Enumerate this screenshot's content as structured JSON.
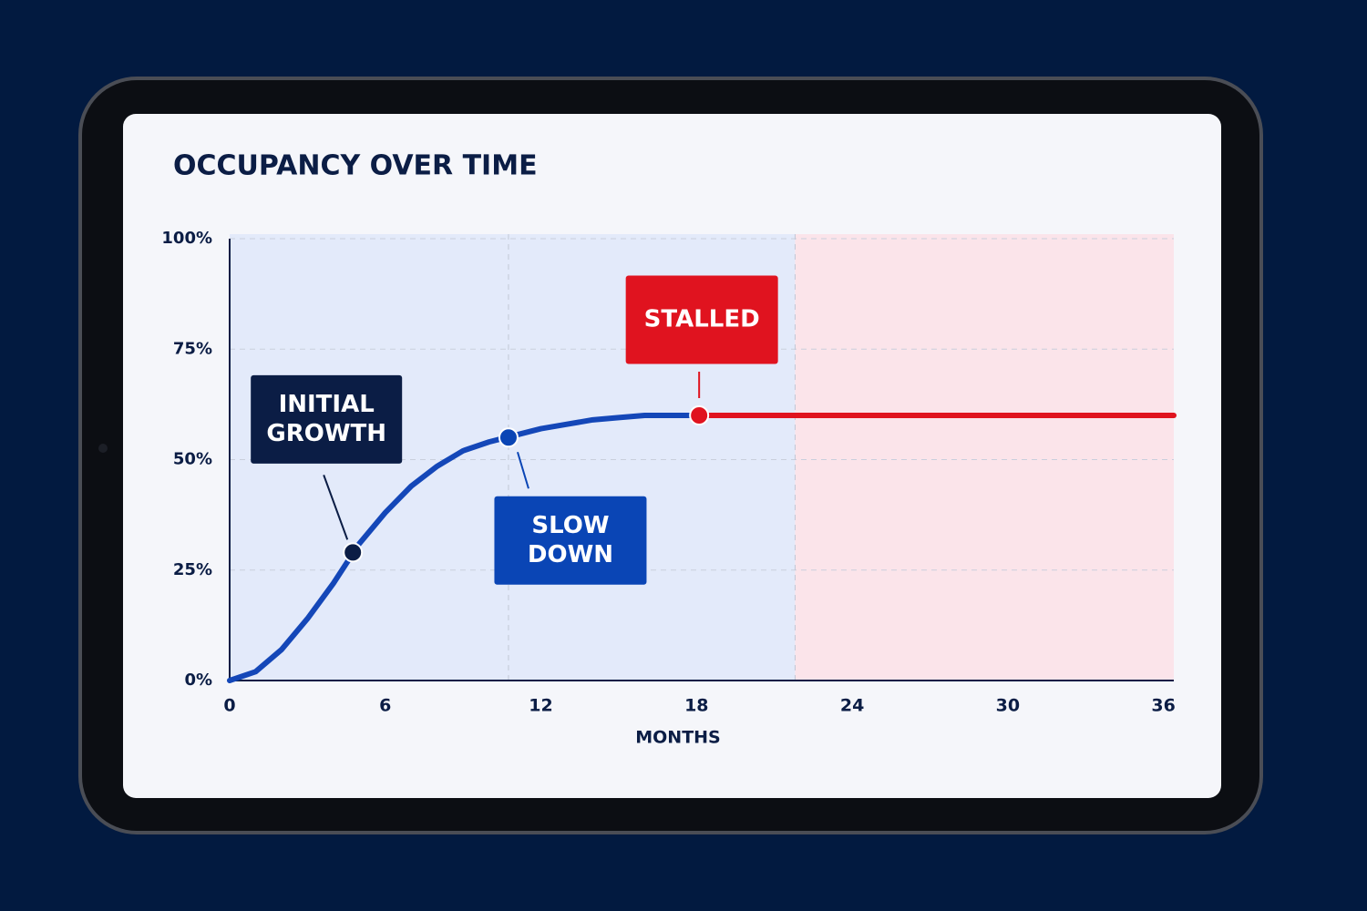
{
  "chart_data": {
    "type": "line",
    "title": "OCCUPANCY OVER TIME",
    "x_label": "MONTHS",
    "xlim": [
      0,
      36.4
    ],
    "xticks": [
      0,
      6,
      12,
      18,
      24,
      30,
      36
    ],
    "ylim": [
      0,
      100
    ],
    "yticks": [
      {
        "value": 0,
        "label": "0%"
      },
      {
        "value": 25,
        "label": "25%"
      },
      {
        "value": 50,
        "label": "50%"
      },
      {
        "value": 75,
        "label": "75%"
      },
      {
        "value": 100,
        "label": "100%"
      }
    ],
    "grid": true,
    "regions": [
      {
        "from": 0,
        "to": 21.8,
        "color": "#e3eafa"
      },
      {
        "from": 21.8,
        "to": 36.4,
        "color": "#fbe4ea"
      }
    ],
    "vlines": [
      10.75,
      21.8
    ],
    "series": [
      {
        "color": "#1447b8",
        "x": [
          0,
          1,
          2,
          3,
          4,
          5,
          6,
          7,
          8,
          9,
          10,
          11,
          12,
          13,
          14,
          15,
          16,
          17,
          18
        ],
        "values": [
          0,
          2,
          7,
          14,
          22,
          31,
          38,
          44,
          48.5,
          52,
          54,
          55.5,
          57,
          58,
          59,
          59.5,
          60,
          60,
          60
        ]
      },
      {
        "color": "#e0131f",
        "x": [
          18,
          36.4
        ],
        "values": [
          60,
          60
        ]
      }
    ],
    "annotations": [
      {
        "lines": [
          "INITIAL",
          "GROWTH"
        ],
        "x": 4.75,
        "y": 29,
        "color": "#0b1d45"
      },
      {
        "lines": [
          "SLOW",
          "DOWN"
        ],
        "x": 10.75,
        "y": 55,
        "color": "#0a45b5"
      },
      {
        "lines": [
          "STALLED"
        ],
        "x": 18.1,
        "y": 60,
        "color": "#e0131f"
      }
    ]
  }
}
